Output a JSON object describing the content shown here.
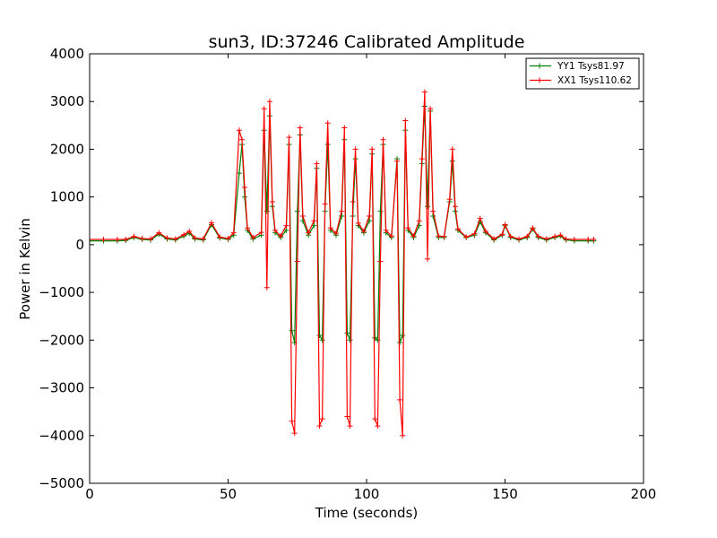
{
  "chart_data": {
    "type": "line",
    "title": "sun3, ID:37246 Calibrated Amplitude",
    "xlabel": "Time (seconds)",
    "ylabel": "Power in Kelvin",
    "xlim": [
      0,
      200
    ],
    "ylim": [
      -5000,
      4000
    ],
    "xticks": [
      0,
      50,
      100,
      150,
      200
    ],
    "yticks": [
      -5000,
      -4000,
      -3000,
      -2000,
      -1000,
      0,
      1000,
      2000,
      3000,
      4000
    ],
    "grid": false,
    "legend_position": "top-right",
    "marker": "plus",
    "series": [
      {
        "name": "YY1 Tsys81.97",
        "color": "#008000",
        "points": [
          [
            0,
            80
          ],
          [
            5,
            80
          ],
          [
            10,
            80
          ],
          [
            13,
            90
          ],
          [
            16,
            150
          ],
          [
            19,
            110
          ],
          [
            22,
            100
          ],
          [
            25,
            220
          ],
          [
            28,
            120
          ],
          [
            31,
            100
          ],
          [
            34,
            180
          ],
          [
            36,
            240
          ],
          [
            38,
            120
          ],
          [
            41,
            100
          ],
          [
            44,
            420
          ],
          [
            47,
            140
          ],
          [
            50,
            110
          ],
          [
            52,
            200
          ],
          [
            54,
            1500
          ],
          [
            55,
            2100
          ],
          [
            56,
            1000
          ],
          [
            57,
            300
          ],
          [
            59,
            120
          ],
          [
            62,
            200
          ],
          [
            63,
            2400
          ],
          [
            64,
            700
          ],
          [
            65,
            2700
          ],
          [
            66,
            800
          ],
          [
            67,
            250
          ],
          [
            69,
            150
          ],
          [
            71,
            300
          ],
          [
            72,
            2100
          ],
          [
            73,
            -1800
          ],
          [
            74,
            -2050
          ],
          [
            75,
            700
          ],
          [
            76,
            2300
          ],
          [
            77,
            500
          ],
          [
            79,
            200
          ],
          [
            81,
            400
          ],
          [
            82,
            1600
          ],
          [
            83,
            -1900
          ],
          [
            84,
            -2000
          ],
          [
            85,
            700
          ],
          [
            86,
            2100
          ],
          [
            87,
            300
          ],
          [
            89,
            200
          ],
          [
            91,
            600
          ],
          [
            92,
            2200
          ],
          [
            93,
            -1850
          ],
          [
            94,
            -2000
          ],
          [
            95,
            600
          ],
          [
            96,
            1800
          ],
          [
            97,
            400
          ],
          [
            99,
            250
          ],
          [
            101,
            500
          ],
          [
            102,
            1900
          ],
          [
            103,
            -1950
          ],
          [
            104,
            -2000
          ],
          [
            105,
            700
          ],
          [
            106,
            2100
          ],
          [
            107,
            250
          ],
          [
            109,
            150
          ],
          [
            111,
            1800
          ],
          [
            112,
            -2050
          ],
          [
            113,
            -1900
          ],
          [
            114,
            2400
          ],
          [
            115,
            300
          ],
          [
            117,
            150
          ],
          [
            119,
            400
          ],
          [
            120,
            1700
          ],
          [
            121,
            2900
          ],
          [
            122,
            800
          ],
          [
            123,
            2800
          ],
          [
            124,
            600
          ],
          [
            126,
            150
          ],
          [
            128,
            150
          ],
          [
            130,
            900
          ],
          [
            131,
            1750
          ],
          [
            132,
            700
          ],
          [
            133,
            300
          ],
          [
            136,
            150
          ],
          [
            139,
            200
          ],
          [
            141,
            480
          ],
          [
            143,
            250
          ],
          [
            146,
            100
          ],
          [
            149,
            200
          ],
          [
            150,
            400
          ],
          [
            152,
            150
          ],
          [
            155,
            100
          ],
          [
            158,
            150
          ],
          [
            160,
            330
          ],
          [
            162,
            150
          ],
          [
            165,
            100
          ],
          [
            168,
            150
          ],
          [
            170,
            180
          ],
          [
            172,
            100
          ],
          [
            175,
            80
          ],
          [
            180,
            80
          ],
          [
            182,
            80
          ]
        ]
      },
      {
        "name": "XX1 Tsys110.62",
        "color": "#ff0000",
        "points": [
          [
            0,
            110
          ],
          [
            5,
            110
          ],
          [
            10,
            110
          ],
          [
            13,
            110
          ],
          [
            16,
            170
          ],
          [
            19,
            130
          ],
          [
            22,
            120
          ],
          [
            25,
            250
          ],
          [
            28,
            140
          ],
          [
            31,
            120
          ],
          [
            34,
            210
          ],
          [
            36,
            280
          ],
          [
            38,
            140
          ],
          [
            41,
            120
          ],
          [
            44,
            460
          ],
          [
            47,
            160
          ],
          [
            50,
            130
          ],
          [
            52,
            250
          ],
          [
            54,
            2400
          ],
          [
            55,
            2200
          ],
          [
            56,
            1200
          ],
          [
            57,
            350
          ],
          [
            59,
            150
          ],
          [
            62,
            260
          ],
          [
            63,
            2850
          ],
          [
            64,
            -900
          ],
          [
            65,
            3000
          ],
          [
            66,
            900
          ],
          [
            67,
            300
          ],
          [
            69,
            180
          ],
          [
            71,
            400
          ],
          [
            72,
            2250
          ],
          [
            73,
            -3700
          ],
          [
            74,
            -3950
          ],
          [
            75,
            -350
          ],
          [
            76,
            2450
          ],
          [
            77,
            600
          ],
          [
            79,
            250
          ],
          [
            81,
            500
          ],
          [
            82,
            1700
          ],
          [
            83,
            -3800
          ],
          [
            84,
            -3650
          ],
          [
            85,
            850
          ],
          [
            86,
            2550
          ],
          [
            87,
            350
          ],
          [
            89,
            240
          ],
          [
            91,
            700
          ],
          [
            92,
            2450
          ],
          [
            93,
            -3600
          ],
          [
            94,
            -3800
          ],
          [
            95,
            900
          ],
          [
            96,
            2000
          ],
          [
            97,
            450
          ],
          [
            99,
            280
          ],
          [
            101,
            600
          ],
          [
            102,
            2000
          ],
          [
            103,
            -3650
          ],
          [
            104,
            -3800
          ],
          [
            105,
            -350
          ],
          [
            106,
            2200
          ],
          [
            107,
            300
          ],
          [
            109,
            180
          ],
          [
            111,
            1750
          ],
          [
            112,
            -3250
          ],
          [
            113,
            -4000
          ],
          [
            114,
            2600
          ],
          [
            115,
            350
          ],
          [
            117,
            180
          ],
          [
            119,
            500
          ],
          [
            120,
            1800
          ],
          [
            121,
            3200
          ],
          [
            122,
            -300
          ],
          [
            123,
            2850
          ],
          [
            124,
            700
          ],
          [
            126,
            180
          ],
          [
            128,
            170
          ],
          [
            130,
            950
          ],
          [
            131,
            2000
          ],
          [
            132,
            800
          ],
          [
            133,
            330
          ],
          [
            136,
            160
          ],
          [
            139,
            230
          ],
          [
            141,
            550
          ],
          [
            143,
            280
          ],
          [
            146,
            120
          ],
          [
            149,
            220
          ],
          [
            150,
            420
          ],
          [
            152,
            170
          ],
          [
            155,
            120
          ],
          [
            158,
            170
          ],
          [
            160,
            350
          ],
          [
            162,
            170
          ],
          [
            165,
            120
          ],
          [
            168,
            170
          ],
          [
            170,
            200
          ],
          [
            172,
            120
          ],
          [
            175,
            110
          ],
          [
            180,
            110
          ],
          [
            182,
            110
          ]
        ]
      }
    ]
  }
}
